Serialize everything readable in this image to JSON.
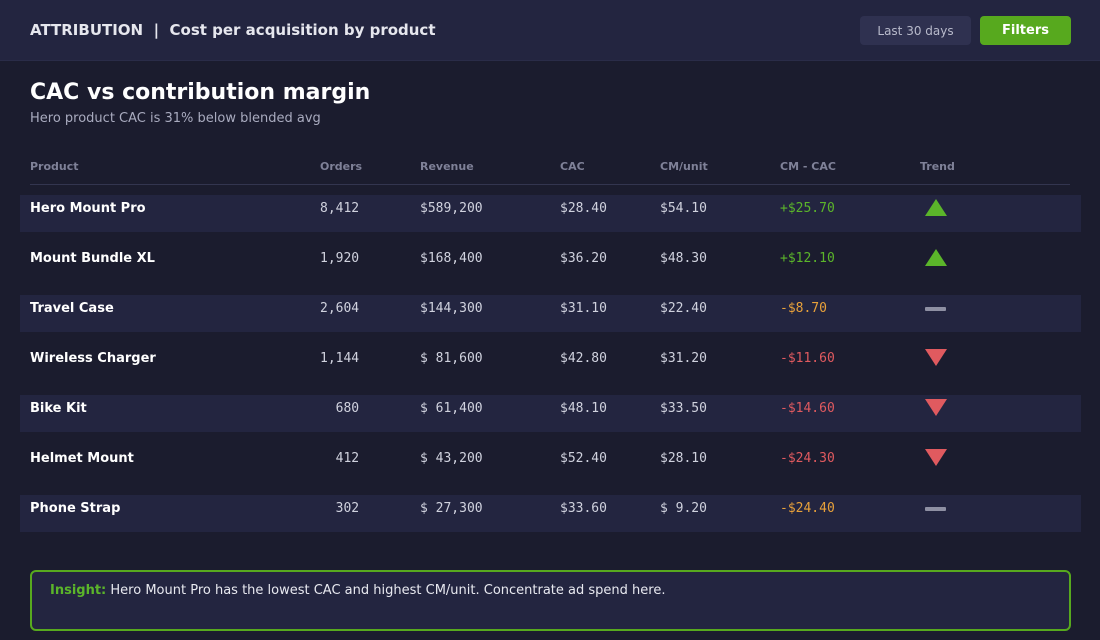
{
  "header": {
    "section": "ATTRIBUTION",
    "separator": "|",
    "title": "Cost per acquisition by product",
    "range_label": "Last 30 days",
    "filters_label": "Filters"
  },
  "main": {
    "title": "CAC vs contribution margin",
    "subtitle": "Hero product CAC is 31% below blended avg"
  },
  "table": {
    "columns": [
      "Product",
      "Orders",
      "Revenue",
      "CAC",
      "CM/unit",
      "CM - CAC",
      "Trend"
    ],
    "rows": [
      {
        "product": "Hero Mount Pro",
        "orders": "8,412",
        "revenue": "$589,200",
        "cac": "$28.40",
        "cm": "$54.10",
        "diff": "+$25.70",
        "trend": "up-icon",
        "tone": "pos"
      },
      {
        "product": "Mount Bundle XL",
        "orders": "1,920",
        "revenue": "$168,400",
        "cac": "$36.20",
        "cm": "$48.30",
        "diff": "+$12.10",
        "trend": "up-icon",
        "tone": "pos"
      },
      {
        "product": "Travel Case",
        "orders": "2,604",
        "revenue": "$144,300",
        "cac": "$31.10",
        "cm": "$22.40",
        "diff": "-$8.70",
        "trend": "flat-icon",
        "tone": "mid"
      },
      {
        "product": "Wireless Charger",
        "orders": "1,144",
        "revenue": "$ 81,600",
        "cac": "$42.80",
        "cm": "$31.20",
        "diff": "-$11.60",
        "trend": "down-icon",
        "tone": "neg"
      },
      {
        "product": "Bike Kit",
        "orders": "  680",
        "revenue": "$ 61,400",
        "cac": "$48.10",
        "cm": "$33.50",
        "diff": "-$14.60",
        "trend": "down-icon",
        "tone": "neg"
      },
      {
        "product": "Helmet Mount",
        "orders": "  412",
        "revenue": "$ 43,200",
        "cac": "$52.40",
        "cm": "$28.10",
        "diff": "-$24.30",
        "trend": "down-icon",
        "tone": "neg"
      },
      {
        "product": "Phone Strap",
        "orders": "  302",
        "revenue": "$ 27,300",
        "cac": "$33.60",
        "cm": "$ 9.20",
        "diff": "-$24.40",
        "trend": "flat-icon",
        "tone": "mid"
      }
    ]
  },
  "insight": {
    "label": "Insight:",
    "text": "Hero Mount Pro has the lowest CAC and highest CM/unit. Concentrate ad spend here."
  },
  "colors": {
    "accent": "#57a91e",
    "positive": "#5bb52a",
    "warning": "#e8a13a",
    "negative": "#e05a5f",
    "background": "#1b1c2e",
    "panel": "#232540"
  }
}
